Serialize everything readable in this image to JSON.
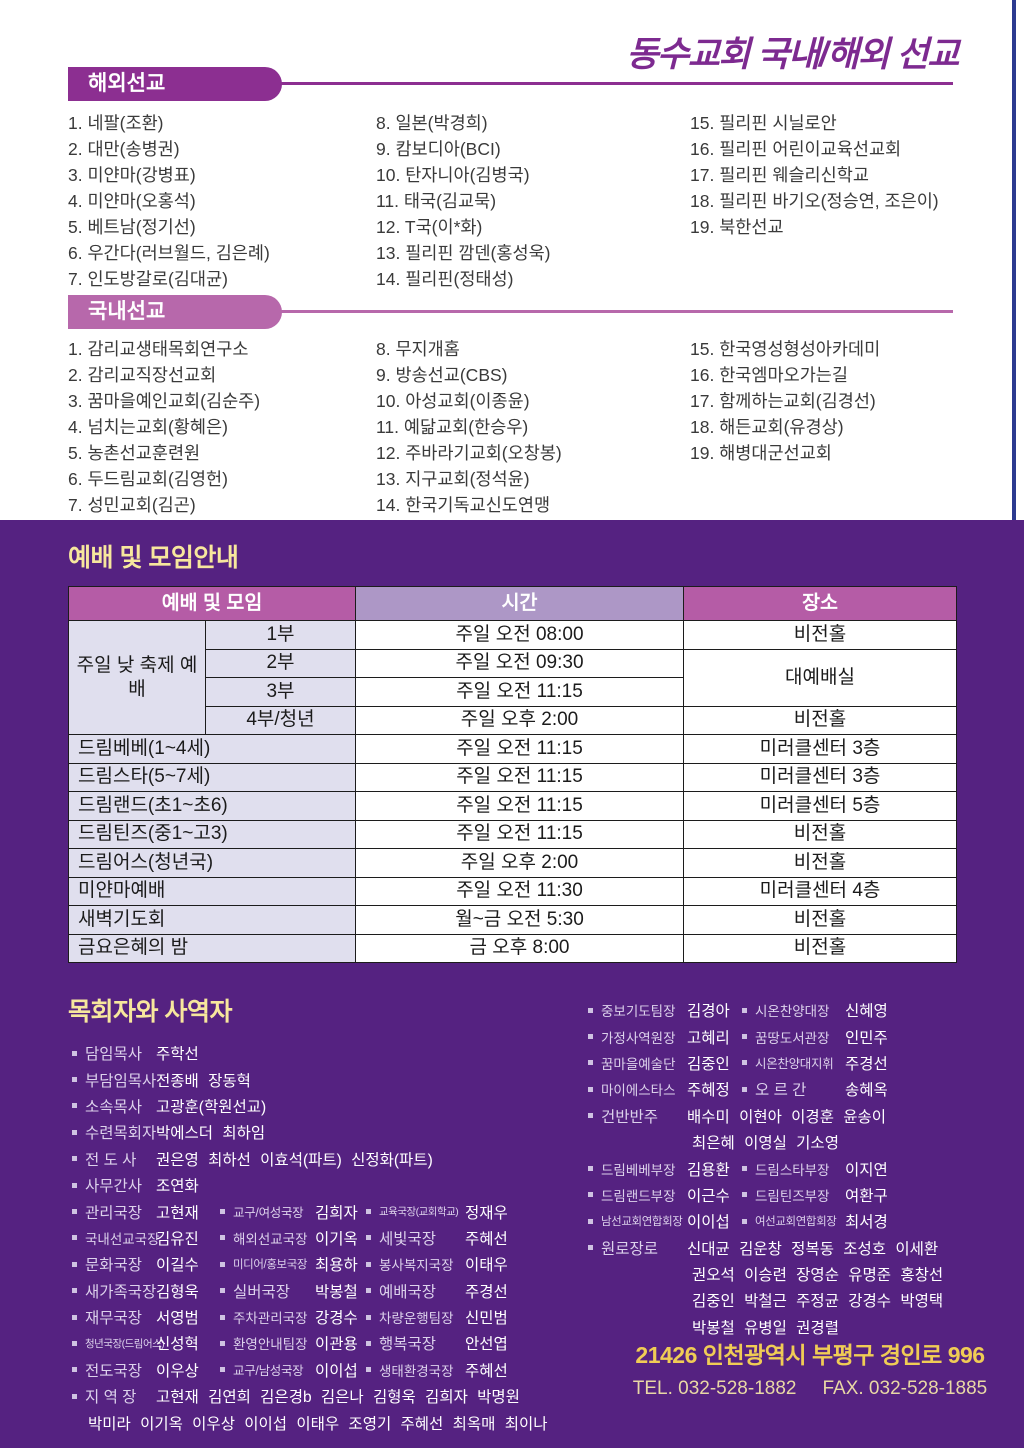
{
  "page": {
    "title": "동수교회 국내/해외 선교"
  },
  "colors": {
    "deep_purple_bg": "#552281",
    "overseas_banner": "#8c2f91",
    "domestic_banner": "#b768ab",
    "table_header_pink": "#b55ca6",
    "table_header_lavender": "#ad97c6",
    "table_row_shade": "#e0dfee",
    "heading_yellow": "#f7e79d",
    "address_gold": "#f0cc55",
    "title_purple": "#7d2a90"
  },
  "overseas": {
    "heading": "해외선교",
    "columns": [
      [
        "1. 네팔(조환)",
        "2. 대만(송병권)",
        "3. 미얀마(강병표)",
        "4. 미얀마(오홍석)",
        "5. 베트남(정기선)",
        "6. 우간다(러브월드, 김은례)",
        "7. 인도방갈로(김대균)"
      ],
      [
        "8. 일본(박경희)",
        "9. 캄보디아(BCI)",
        "10. 탄자니아(김병국)",
        "11. 태국(김교묵)",
        "12. T국(이*화)",
        "13. 필리핀 깜덴(홍성욱)",
        "14. 필리핀(정태성)"
      ],
      [
        "15. 필리핀 시닐로안",
        "16. 필리핀 어린이교육선교회",
        "17. 필리핀 웨슬리신학교",
        "18. 필리핀 바기오(정승연, 조은이)",
        "19. 북한선교"
      ]
    ]
  },
  "domestic": {
    "heading": "국내선교",
    "columns": [
      [
        "1. 감리교생태목회연구소",
        "2. 감리교직장선교회",
        "3. 꿈마을예인교회(김순주)",
        "4. 넘치는교회(황혜은)",
        "5. 농촌선교훈련원",
        "6. 두드림교회(김영헌)",
        "7. 성민교회(김곤)"
      ],
      [
        "8. 무지개홈",
        "9. 방송선교(CBS)",
        "10. 아성교회(이종윤)",
        "11. 예닮교회(한승우)",
        "12. 주바라기교회(오창봉)",
        "13. 지구교회(정석윤)",
        "14. 한국기독교신도연맹"
      ],
      [
        "15. 한국영성형성아카데미",
        "16. 한국엠마오가는길",
        "17. 함께하는교회(김경선)",
        "18. 해든교회(유경상)",
        "19. 해병대군선교회"
      ]
    ]
  },
  "schedule": {
    "heading": "예배 및 모임안내",
    "table": {
      "header": [
        {
          "t": "예배 및 모임",
          "cs": 2,
          "cls": "hp"
        },
        {
          "t": "시간",
          "cls": "hl"
        },
        {
          "t": "장소",
          "cls": "hp"
        }
      ],
      "rows": [
        [
          {
            "t": "주일 낮 축제 예배",
            "rs": 4,
            "cls": "shade"
          },
          {
            "t": "1부",
            "cls": "shade"
          },
          {
            "t": "주일 오전 08:00"
          },
          {
            "t": "비전홀"
          }
        ],
        [
          {
            "t": "2부",
            "cls": "shade"
          },
          {
            "t": "주일 오전 09:30"
          },
          {
            "t": "대예배실",
            "rs": 2
          }
        ],
        [
          {
            "t": "3부",
            "cls": "shade"
          },
          {
            "t": "주일 오전 11:15"
          }
        ],
        [
          {
            "t": "4부/청년",
            "cls": "shade"
          },
          {
            "t": "주일 오후 2:00"
          },
          {
            "t": "비전홀"
          }
        ],
        [
          {
            "t": "드림베베(1~4세)",
            "cs": 2,
            "cls": "shade left"
          },
          {
            "t": "주일 오전 11:15"
          },
          {
            "t": "미러클센터 3층"
          }
        ],
        [
          {
            "t": "드림스타(5~7세)",
            "cs": 2,
            "cls": "shade left"
          },
          {
            "t": "주일 오전 11:15"
          },
          {
            "t": "미러클센터 3층"
          }
        ],
        [
          {
            "t": "드림랜드(초1~초6)",
            "cs": 2,
            "cls": "shade left"
          },
          {
            "t": "주일 오전 11:15"
          },
          {
            "t": "미러클센터 5층"
          }
        ],
        [
          {
            "t": "드림틴즈(중1~고3)",
            "cs": 2,
            "cls": "shade left"
          },
          {
            "t": "주일 오전 11:15"
          },
          {
            "t": "비전홀"
          }
        ],
        [
          {
            "t": "드림어스(청년국)",
            "cs": 2,
            "cls": "shade left"
          },
          {
            "t": "주일 오후 2:00"
          },
          {
            "t": "비전홀"
          }
        ],
        [
          {
            "t": "미얀마예배",
            "cs": 2,
            "cls": "shade left"
          },
          {
            "t": "주일 오전 11:30"
          },
          {
            "t": "미러클센터 4층"
          }
        ],
        [
          {
            "t": "새벽기도회",
            "cs": 2,
            "cls": "shade left"
          },
          {
            "t": "월~금 오전 5:30"
          },
          {
            "t": "비전홀"
          }
        ],
        [
          {
            "t": "금요은혜의 밤",
            "cs": 2,
            "cls": "shade left"
          },
          {
            "t": "금 오후 8:00"
          },
          {
            "t": "비전홀"
          }
        ]
      ]
    }
  },
  "staff": {
    "heading": "목회자와 사역자",
    "left": [
      [
        {
          "l": "담임목사",
          "n": "주학선"
        }
      ],
      [
        {
          "l": "부담임목사",
          "n": "전종배 장동혁"
        }
      ],
      [
        {
          "l": "소속목사",
          "n": "고광훈(학원선교)"
        }
      ],
      [
        {
          "l": "수련목회자",
          "n": "박에스더 최하임"
        }
      ],
      [
        {
          "l": "전 도 사",
          "n": "권은영 최하선 이효석(파트) 신정화(파트)"
        }
      ],
      [
        {
          "l": "사무간사",
          "n": "조연화"
        }
      ],
      [
        {
          "l": "관리국장",
          "n": "고현재"
        },
        {
          "l": "교구/여성국장",
          "n": "김희자"
        },
        {
          "l": "교육국장(교회학교)",
          "n": "정재우"
        }
      ],
      [
        {
          "l": "국내선교국장",
          "n": "김유진"
        },
        {
          "l": "해외선교국장",
          "n": "이기옥"
        },
        {
          "l": "세빛국장",
          "n": "주혜선"
        }
      ],
      [
        {
          "l": "문화국장",
          "n": "이길수"
        },
        {
          "l": "미디어/홍보국장",
          "n": "최용하"
        },
        {
          "l": "봉사복지국장",
          "n": "이태우"
        }
      ],
      [
        {
          "l": "새가족국장",
          "n": "김형욱"
        },
        {
          "l": "실버국장",
          "n": "박봉철"
        },
        {
          "l": "예배국장",
          "n": "주경선"
        }
      ],
      [
        {
          "l": "재무국장",
          "n": "서영범"
        },
        {
          "l": "주차관리국장",
          "n": "강경수"
        },
        {
          "l": "차량운행팀장",
          "n": "신민범"
        }
      ],
      [
        {
          "l": "청년국장(드림어스)",
          "n": "신성혁"
        },
        {
          "l": "환영안내팀장",
          "n": "이관용"
        },
        {
          "l": "행복국장",
          "n": "안선엽"
        }
      ],
      [
        {
          "l": "전도국장",
          "n": "이우상"
        },
        {
          "l": "교구/남성국장",
          "n": "이이섭"
        },
        {
          "l": "생태환경국장",
          "n": "주혜선"
        }
      ],
      [
        {
          "l": "지 역 장",
          "n": "고현재 김연희 김은경b 김은나 김형욱 김희자 박명원"
        }
      ],
      {
        "cont": "박미라 이기옥 이우상 이이섭 이태우 조영기 주혜선 최옥매 최이나"
      }
    ],
    "right": [
      [
        {
          "l": "중보기도팀장",
          "n": "김경아"
        },
        {
          "l": "시온찬양대장",
          "n": "신혜영"
        }
      ],
      [
        {
          "l": "가정사역원장",
          "n": "고혜리"
        },
        {
          "l": "꿈땅도서관장",
          "n": "인민주"
        }
      ],
      [
        {
          "l": "꿈마을예술단",
          "n": "김중인"
        },
        {
          "l": "시온찬양대지휘",
          "n": "주경선"
        }
      ],
      [
        {
          "l": "마이에스타스",
          "n": "주혜정"
        },
        {
          "l": "오 르 간",
          "n": "송혜옥"
        }
      ],
      [
        {
          "l": "건반반주",
          "n": "배수미 이현아 이경훈 윤송이"
        }
      ],
      {
        "cont": "최은혜 이영실 기소영"
      },
      [
        {
          "l": "드림베베부장",
          "n": "김용환"
        },
        {
          "l": "드림스타부장",
          "n": "이지연"
        }
      ],
      [
        {
          "l": "드림랜드부장",
          "n": "이근수"
        },
        {
          "l": "드림틴즈부장",
          "n": "여환구"
        }
      ],
      [
        {
          "l": "남선교회연합회장",
          "n": "이이섭"
        },
        {
          "l": "여선교회연합회장",
          "n": "최서경"
        }
      ],
      [
        {
          "l": "원로장로",
          "n": "신대균 김운창 정복동 조성호 이세환"
        }
      ],
      {
        "cont": "권오석 이승련 장영순 유명준 홍창선"
      },
      {
        "cont": "김중인 박철근 주정균 강경수 박영택"
      },
      {
        "cont": "박봉철 유병일 권경렬"
      }
    ]
  },
  "footer": {
    "address": "21426  인천광역시 부평구 경인로 996",
    "tel": "TEL. 032-528-1882",
    "fax": "FAX. 032-528-1885"
  }
}
